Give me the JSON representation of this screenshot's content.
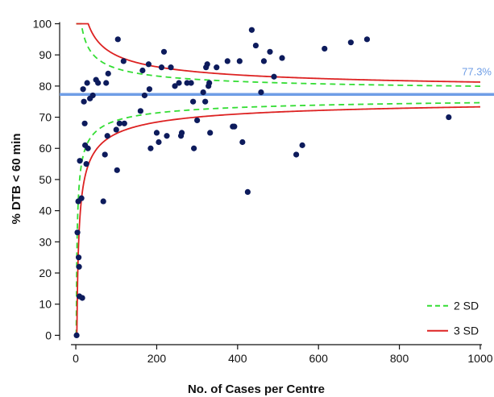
{
  "chart_data": {
    "type": "scatter",
    "title": "",
    "xlabel": "No. of Cases per Centre",
    "ylabel": "% DTB < 60 min",
    "xlim": [
      -40,
      1020
    ],
    "ylim": [
      -3,
      104
    ],
    "xticks": [
      0,
      200,
      400,
      600,
      800,
      1000
    ],
    "yticks": [
      0,
      10,
      20,
      30,
      40,
      50,
      60,
      70,
      80,
      90,
      100
    ],
    "grid": false,
    "legend_position": "bottom-right",
    "mean": 77.3,
    "mean_label": "77.3%",
    "mean_color": "#6f9ee6",
    "limits": [
      {
        "name": "2 SD",
        "sd": 2,
        "color": "#33dd33",
        "dash": "dashed"
      },
      {
        "name": "3 SD",
        "sd": 3,
        "color": "#dd2222",
        "dash": "solid"
      }
    ],
    "points": [
      [
        2,
        0
      ],
      [
        4,
        33
      ],
      [
        6,
        43
      ],
      [
        7,
        25
      ],
      [
        8,
        22
      ],
      [
        9,
        12.5
      ],
      [
        10,
        56
      ],
      [
        14,
        44
      ],
      [
        16,
        12
      ],
      [
        18,
        79
      ],
      [
        20,
        75
      ],
      [
        22,
        68
      ],
      [
        23,
        61
      ],
      [
        26,
        55
      ],
      [
        28,
        81
      ],
      [
        30,
        60
      ],
      [
        35,
        76
      ],
      [
        42,
        77
      ],
      [
        50,
        82
      ],
      [
        55,
        81
      ],
      [
        68,
        43
      ],
      [
        72,
        58
      ],
      [
        75,
        81
      ],
      [
        78,
        64
      ],
      [
        80,
        84
      ],
      [
        100,
        66
      ],
      [
        102,
        53
      ],
      [
        104,
        95
      ],
      [
        108,
        68
      ],
      [
        118,
        88
      ],
      [
        120,
        68
      ],
      [
        160,
        72
      ],
      [
        165,
        85
      ],
      [
        170,
        77
      ],
      [
        180,
        87
      ],
      [
        182,
        79
      ],
      [
        185,
        60
      ],
      [
        200,
        65
      ],
      [
        205,
        62
      ],
      [
        212,
        86
      ],
      [
        218,
        91
      ],
      [
        225,
        64
      ],
      [
        235,
        86
      ],
      [
        245,
        80
      ],
      [
        255,
        81
      ],
      [
        260,
        64
      ],
      [
        262,
        65
      ],
      [
        275,
        81
      ],
      [
        285,
        81
      ],
      [
        290,
        75
      ],
      [
        292,
        60
      ],
      [
        300,
        69
      ],
      [
        315,
        78
      ],
      [
        320,
        75
      ],
      [
        322,
        86
      ],
      [
        325,
        87
      ],
      [
        328,
        80
      ],
      [
        330,
        81
      ],
      [
        332,
        65
      ],
      [
        348,
        86
      ],
      [
        375,
        88
      ],
      [
        388,
        67
      ],
      [
        392,
        67
      ],
      [
        405,
        88
      ],
      [
        412,
        62
      ],
      [
        425,
        46
      ],
      [
        435,
        98
      ],
      [
        445,
        93
      ],
      [
        458,
        78
      ],
      [
        465,
        88
      ],
      [
        480,
        91
      ],
      [
        490,
        83
      ],
      [
        510,
        89
      ],
      [
        545,
        58
      ],
      [
        560,
        61
      ],
      [
        615,
        92
      ],
      [
        680,
        94
      ],
      [
        720,
        95
      ],
      [
        922,
        70
      ]
    ],
    "point_color": "#0d1b5c"
  }
}
